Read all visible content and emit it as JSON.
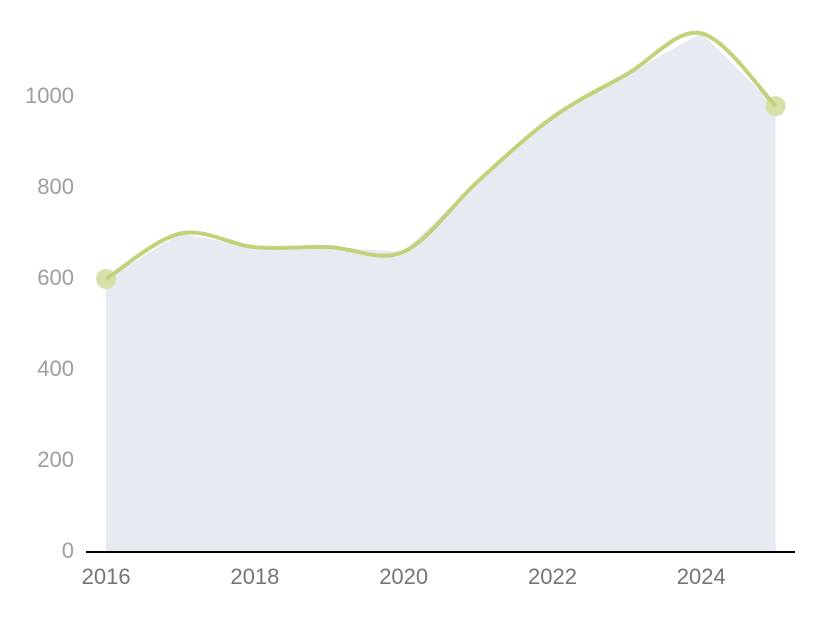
{
  "chart_data": {
    "type": "area",
    "x": [
      2016,
      2017,
      2018,
      2019,
      2020,
      2021,
      2022,
      2023,
      2024,
      2025
    ],
    "values": [
      600,
      700,
      670,
      670,
      660,
      815,
      955,
      1050,
      1140,
      980
    ],
    "color": "#c2d17a",
    "area_color": "#e6ebf2",
    "marker_color": "#d6e0a8",
    "xlim": [
      2015.73,
      2025.26
    ],
    "xticks": [
      2016,
      2018,
      2020,
      2022,
      2024
    ],
    "ylim": [
      0,
      1200
    ],
    "yticks": [
      0,
      200,
      400,
      600,
      800,
      1000
    ]
  }
}
